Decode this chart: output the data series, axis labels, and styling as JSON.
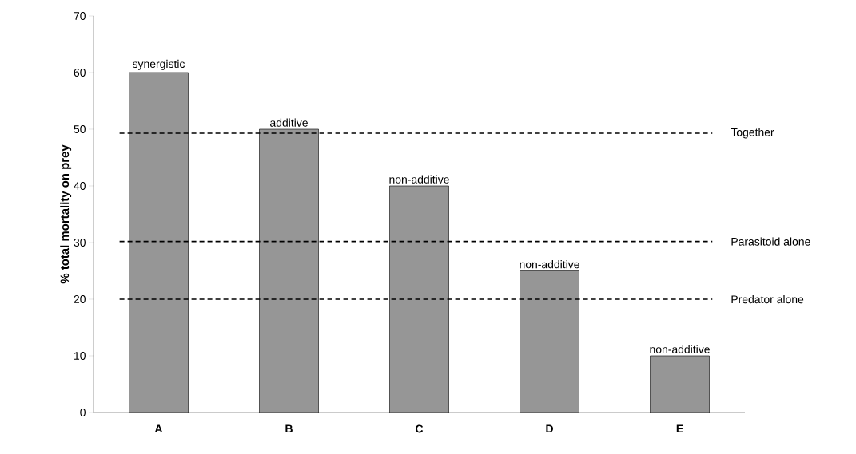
{
  "chart_data": {
    "type": "bar",
    "ylabel": "% total mortality on prey",
    "categories": [
      "A",
      "B",
      "C",
      "D",
      "E"
    ],
    "values": [
      60,
      50,
      40,
      25,
      10
    ],
    "color": "#969696",
    "ylim": [
      0,
      70
    ],
    "yticks": [
      0,
      10,
      20,
      30,
      40,
      50,
      60,
      70
    ],
    "grid": false,
    "ref_lines": [
      {
        "axis": "y",
        "value": 49.3,
        "label": "Together",
        "line_style": "dashed"
      },
      {
        "axis": "y",
        "value": 30.2,
        "label": "Parasitoid alone",
        "line_style": "dashed"
      },
      {
        "axis": "y",
        "value": 20,
        "label": "Predator alone",
        "line_style": "dashed"
      }
    ],
    "annotations": [
      {
        "text": "synergistic",
        "x": "A",
        "y": 60
      },
      {
        "text": "additive",
        "x": "B",
        "y": 50
      },
      {
        "text": "non-additive",
        "x": "C",
        "y": 40
      },
      {
        "text": "non-additive",
        "x": "D",
        "y": 25
      },
      {
        "text": "non-additive",
        "x": "E",
        "y": 10
      }
    ]
  }
}
